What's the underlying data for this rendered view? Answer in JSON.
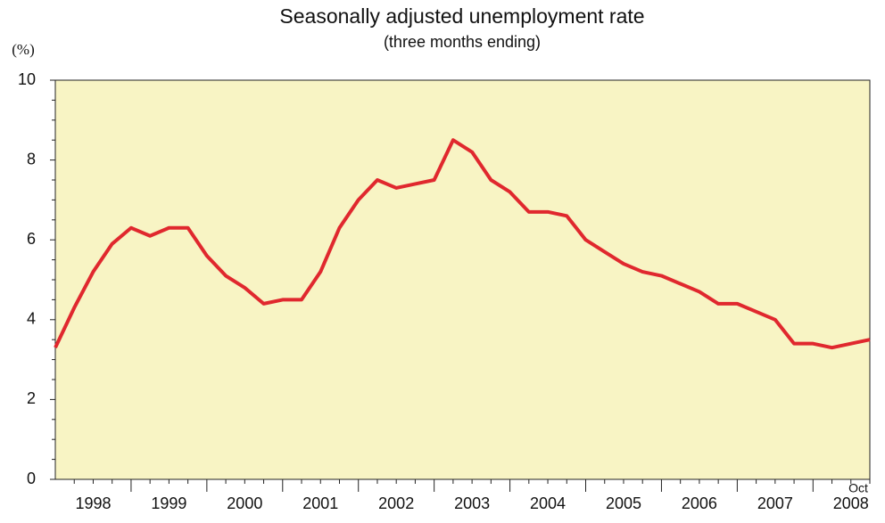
{
  "chart_data": {
    "type": "line",
    "title": "Seasonally adjusted unemployment rate",
    "subtitle": "(three months ending)",
    "y_unit": "(%)",
    "x_labels": [
      "1998",
      "1999",
      "2000",
      "2001",
      "2002",
      "2003",
      "2004",
      "2005",
      "2006",
      "2007",
      "2008"
    ],
    "last_point_label": "Oct",
    "values": [
      3.3,
      4.3,
      5.2,
      5.9,
      6.3,
      6.1,
      6.3,
      6.3,
      5.6,
      5.1,
      4.8,
      4.4,
      4.5,
      4.5,
      5.2,
      6.3,
      7.0,
      7.5,
      7.3,
      7.4,
      7.5,
      8.5,
      8.2,
      7.5,
      7.2,
      6.7,
      6.7,
      6.6,
      6.0,
      5.7,
      5.4,
      5.2,
      5.1,
      4.9,
      4.7,
      4.4,
      4.4,
      4.2,
      4.0,
      3.4,
      3.4,
      3.3,
      3.4,
      3.5
    ],
    "color": "#e0282e",
    "plot_background": "#f8f4c4",
    "ylim": [
      0,
      10
    ],
    "yticks": [
      0,
      2,
      4,
      6,
      8,
      10
    ],
    "yminorticks": [
      0.5,
      1,
      1.5,
      2.5,
      3,
      3.5,
      4.5,
      5,
      5.5,
      6.5,
      7,
      7.5,
      8.5,
      9,
      9.5
    ],
    "grid": false
  }
}
